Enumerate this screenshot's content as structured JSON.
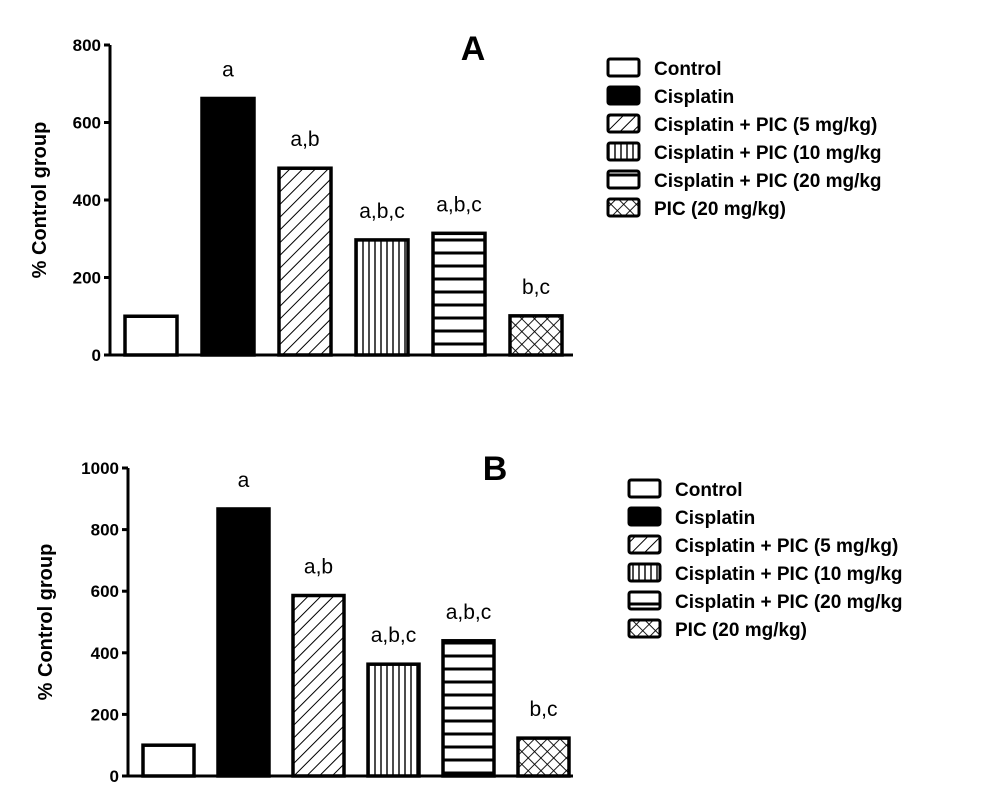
{
  "chart_data": [
    {
      "type": "bar",
      "title": "A",
      "ylabel": "% Control group",
      "xlabel": "",
      "ylim": [
        0,
        800
      ],
      "yticks": [
        0,
        200,
        400,
        600,
        800
      ],
      "categories": [
        "Control",
        "Cisplatin",
        "Cisplatin + PIC (5 mg/kg)",
        "Cisplatin + PIC (10 mg/kg",
        "Cisplatin + PIC (20 mg/kg",
        "PIC (20 mg/kg)"
      ],
      "values": [
        100,
        662,
        482,
        297,
        314,
        101
      ],
      "annotations": [
        "",
        "a",
        "a,b",
        "a,b,c",
        "a,b,c",
        "b,c"
      ],
      "fills": [
        "none",
        "solid",
        "diagonal",
        "vertical",
        "horizontal",
        "crosshatch"
      ],
      "legend_position": "right"
    },
    {
      "type": "bar",
      "title": "B",
      "ylabel": "% Control group",
      "xlabel": "",
      "ylim": [
        0,
        1000
      ],
      "yticks": [
        0,
        200,
        400,
        600,
        800,
        1000
      ],
      "categories": [
        "Control",
        "Cisplatin",
        "Cisplatin + PIC (5 mg/kg)",
        "Cisplatin + PIC (10 mg/kg",
        "Cisplatin + PIC (20 mg/kg",
        "PIC (20 mg/kg)"
      ],
      "values": [
        100,
        867,
        586,
        363,
        439,
        123
      ],
      "annotations": [
        "",
        "a",
        "a,b",
        "a,b,c",
        "a,b,c",
        "b,c"
      ],
      "fills": [
        "none",
        "solid",
        "diagonal",
        "vertical",
        "horizontal",
        "crosshatch"
      ],
      "legend_position": "right"
    }
  ]
}
